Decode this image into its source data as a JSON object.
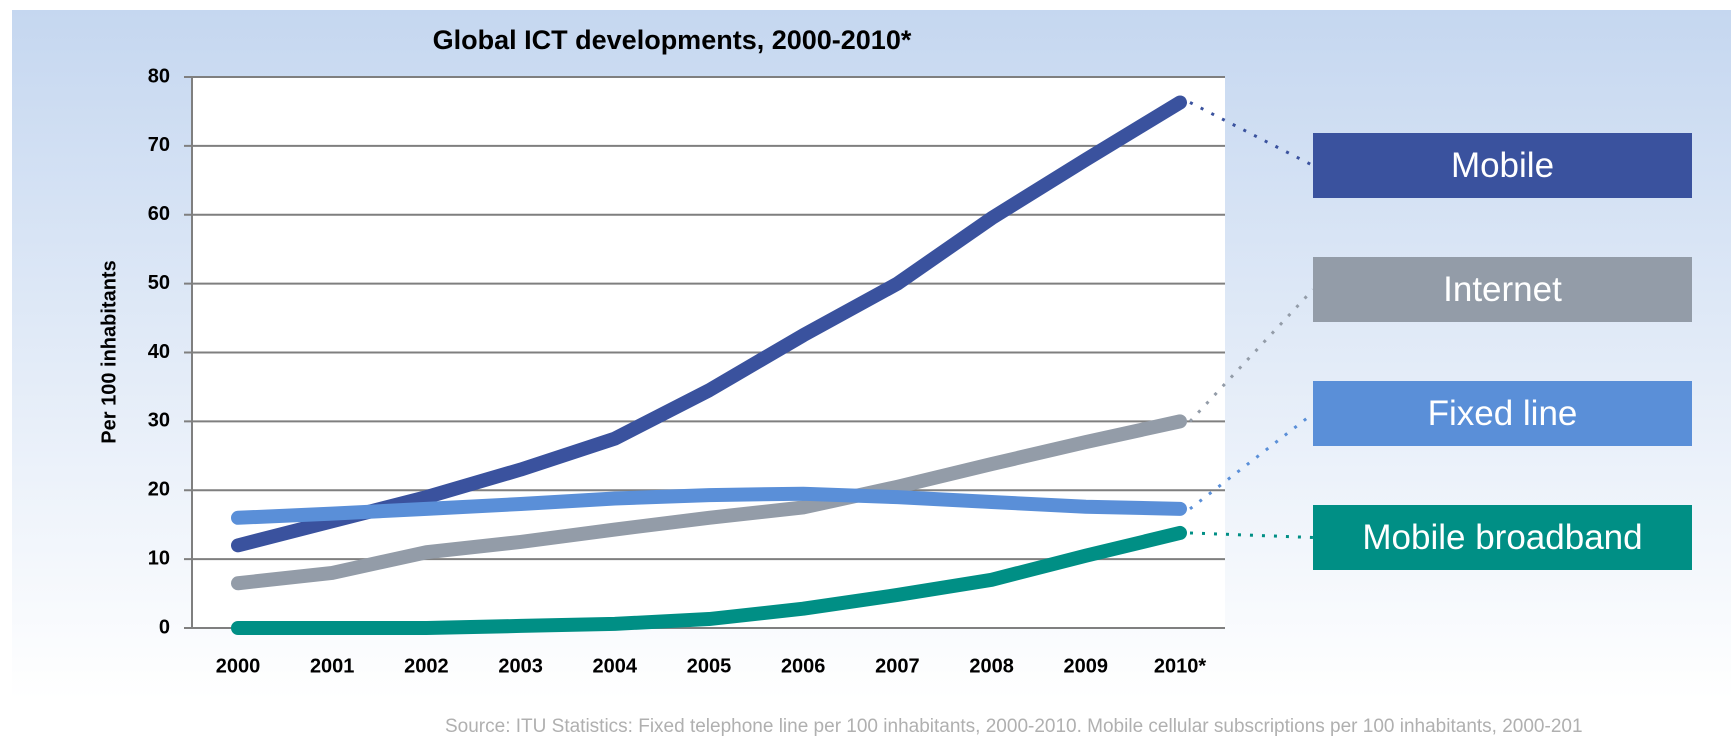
{
  "chart_data": {
    "type": "line",
    "title": "Global ICT developments, 2000-2010*",
    "y_label": "Per 100 inhabitants",
    "source": "Source: ITU Statistics: Fixed telephone line per 100 inhabitants, 2000-2010. Mobile cellular subscriptions per 100 inhabitants, 2000-201",
    "categories": [
      "2000",
      "2001",
      "2002",
      "2003",
      "2004",
      "2005",
      "2006",
      "2007",
      "2008",
      "2009",
      "2010*"
    ],
    "series": [
      {
        "name": "Mobile",
        "color": "#3a529e",
        "values": [
          12,
          15.5,
          19,
          23,
          27.5,
          34.5,
          42.5,
          50,
          59.5,
          68,
          76.3
        ]
      },
      {
        "name": "Internet",
        "color": "#939ca8",
        "values": [
          6.5,
          8,
          11,
          12.5,
          14.3,
          16,
          17.5,
          20.5,
          23.8,
          27,
          30
        ]
      },
      {
        "name": "Fixed line",
        "color": "#5a8fd8",
        "values": [
          16,
          16.6,
          17.3,
          18,
          18.8,
          19.3,
          19.5,
          19,
          18.3,
          17.6,
          17.3
        ]
      },
      {
        "name": "Mobile broadband",
        "color": "#008f85",
        "values": [
          0,
          0,
          0,
          0.3,
          0.6,
          1.3,
          2.8,
          4.8,
          7,
          10.5,
          13.8
        ]
      }
    ],
    "ylim": [
      0,
      80
    ],
    "yticks": [
      0,
      10,
      20,
      30,
      40,
      50,
      60,
      70,
      80
    ],
    "grid": true
  }
}
